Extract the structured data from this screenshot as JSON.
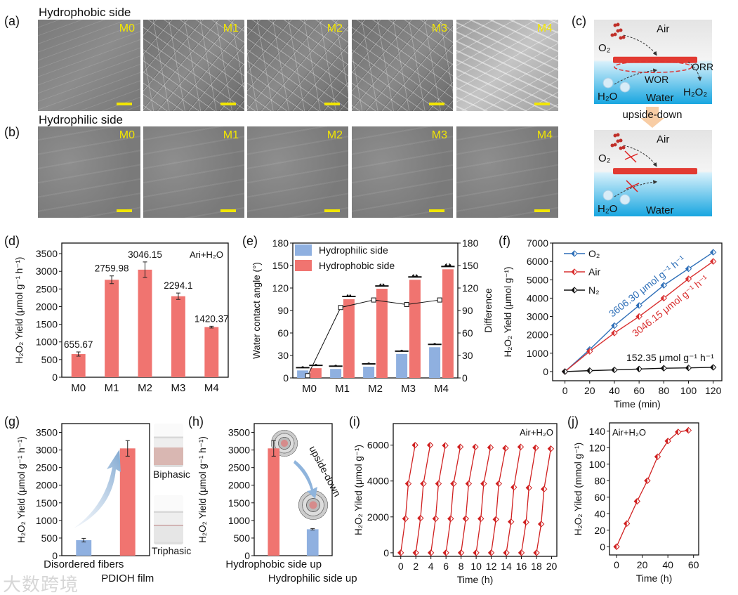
{
  "panels": {
    "a": "(a)",
    "b": "(b)",
    "c": "(c)",
    "d": "(d)",
    "e": "(e)",
    "f": "(f)",
    "g": "(g)",
    "h": "(h)",
    "i": "(i)",
    "j": "(j)"
  },
  "sem": {
    "hydrophobic_title": "Hydrophobic side",
    "hydrophilic_title": "Hydrophilic side",
    "samples": [
      "M0",
      "M1",
      "M2",
      "M3",
      "M4"
    ]
  },
  "schematic": {
    "top": {
      "air": "Air",
      "o2": "O₂",
      "orr": "ORR",
      "wor": "WOR",
      "h2o": "H₂O",
      "water": "Water",
      "h2o2": "H₂O₂"
    },
    "arrow_label": "upside-down",
    "bottom": {
      "air": "Air",
      "o2": "O₂",
      "h2o": "H₂O",
      "water": "Water"
    }
  },
  "photos": {
    "biphasic": "Biphasic",
    "triphasic": "Triphasic",
    "upside_down": "upside-down"
  },
  "watermark": "大数跨境",
  "colors": {
    "red": "#f07470",
    "blue": "#8fb0e0",
    "o2_line": "#2e6fb8",
    "air_line": "#d93030",
    "n2_line": "#111111",
    "cycle_line": "#d02020"
  },
  "chart_data": [
    {
      "id": "d",
      "type": "bar",
      "categories": [
        "M0",
        "M1",
        "M2",
        "M3",
        "M4"
      ],
      "values": [
        655.67,
        2759.98,
        3046.15,
        2294.1,
        1420.37
      ],
      "errors": [
        60,
        110,
        220,
        90,
        25
      ],
      "value_labels": [
        "655.67",
        "2759.98",
        "3046.15",
        "2294.1",
        "1420.37"
      ],
      "ylabel": "H₂O₂ Yield (μmol g⁻¹ h⁻¹)",
      "xlabel": "",
      "ylim": [
        0,
        3800
      ],
      "yticks": [
        0,
        500,
        1000,
        1500,
        2000,
        2500,
        3000,
        3500
      ],
      "annotation": "Ari+H₂O"
    },
    {
      "id": "e",
      "type": "bar",
      "categories": [
        "M0",
        "M1",
        "M2",
        "M3",
        "M4"
      ],
      "series": [
        {
          "name": "Hydrophilic side",
          "values": [
            10,
            12,
            15,
            32,
            41
          ]
        },
        {
          "name": "Hydrophobic side",
          "values": [
            13,
            105,
            119,
            131,
            145
          ]
        }
      ],
      "line_series": {
        "name": "Difference",
        "values": [
          3,
          94,
          104,
          98,
          104
        ]
      },
      "ylabel": "Water contact angle (°)",
      "y2label": "Difference",
      "ylim": [
        0,
        180
      ],
      "yticks": [
        0,
        30,
        60,
        90,
        120,
        150,
        180
      ],
      "y2lim": [
        0,
        180
      ],
      "y2ticks": [
        0,
        30,
        60,
        90,
        120,
        150,
        180
      ],
      "legend": "top-left"
    },
    {
      "id": "f",
      "type": "line",
      "x": [
        0,
        20,
        40,
        60,
        80,
        100,
        120
      ],
      "series": [
        {
          "name": "O₂",
          "values": [
            0,
            1200,
            2500,
            3600,
            4700,
            5600,
            6500
          ]
        },
        {
          "name": "Air",
          "values": [
            0,
            1100,
            2100,
            3000,
            4000,
            5050,
            6000
          ]
        },
        {
          "name": "N₂",
          "values": [
            0,
            50,
            90,
            140,
            180,
            200,
            230
          ]
        }
      ],
      "annotations": [
        "3606.30 μmol g⁻¹ h⁻¹",
        "3046.15 μmol g⁻¹ h⁻¹",
        "152.35 μmol g⁻¹ h⁻¹"
      ],
      "xlabel": "Time (min)",
      "ylabel": "H₂O₂ Yield (μmol g⁻¹)",
      "xlim": [
        -10,
        127
      ],
      "xticks": [
        0,
        20,
        40,
        60,
        80,
        100,
        120
      ],
      "ylim": [
        -500,
        7000
      ],
      "yticks": [
        0,
        1000,
        2000,
        3000,
        4000,
        5000,
        6000,
        7000
      ],
      "legend": "top-left"
    },
    {
      "id": "g",
      "type": "bar",
      "categories": [
        "Disordered fibers",
        "PDIOH film"
      ],
      "values": [
        440,
        3046.15
      ],
      "errors": [
        50,
        220
      ],
      "ylabel": "H₂O₂ Yield (μmol g⁻¹ h⁻¹)",
      "ylim": [
        0,
        3750
      ],
      "yticks": [
        0,
        500,
        1000,
        1500,
        2000,
        2500,
        3000,
        3500
      ]
    },
    {
      "id": "h",
      "type": "bar",
      "categories": [
        "Hydrophobic side up",
        "Hydrophilic side up"
      ],
      "values": [
        3046.15,
        750
      ],
      "errors": [
        220,
        20
      ],
      "ylabel": "H₂O₂ Yield (μmol g⁻¹ h⁻¹)",
      "ylim": [
        0,
        3750
      ],
      "yticks": [
        0,
        500,
        1000,
        1500,
        2000,
        2500,
        3000,
        3500
      ]
    },
    {
      "id": "i",
      "type": "line",
      "cycle_offsets": [
        0,
        0.62,
        1.0,
        1.9
      ],
      "cycle_starts": [
        0,
        2,
        4,
        6,
        8,
        10,
        12,
        14,
        16,
        18
      ],
      "cycles": [
        [
          0,
          1900,
          3850,
          6000
        ],
        [
          0,
          1930,
          3850,
          6000
        ],
        [
          0,
          1900,
          3850,
          5980
        ],
        [
          0,
          1900,
          3850,
          5900
        ],
        [
          0,
          1900,
          3850,
          5900
        ],
        [
          0,
          1900,
          3850,
          5870
        ],
        [
          0,
          1860,
          3850,
          5830
        ],
        [
          0,
          1730,
          3650,
          5900
        ],
        [
          0,
          1700,
          3620,
          5850
        ],
        [
          0,
          1600,
          3550,
          5800
        ]
      ],
      "xlabel": "Time (h)",
      "ylabel": "H₂O₂ Yiled (μmol g⁻¹)",
      "xlim": [
        -1,
        20.7
      ],
      "xticks": [
        0,
        2,
        4,
        6,
        8,
        10,
        12,
        14,
        16,
        18,
        20
      ],
      "ylim": [
        -200,
        7200
      ],
      "yticks": [
        0,
        2000,
        4000,
        6000
      ],
      "annotation": "Air+H₂O"
    },
    {
      "id": "j",
      "type": "line",
      "x": [
        0,
        8,
        16,
        24,
        32,
        40,
        48,
        56
      ],
      "values": [
        0,
        28,
        55,
        80,
        109,
        128,
        139,
        141
      ],
      "xlabel": "Time (h)",
      "ylabel": "H₂O₂ Yiled (mmol g⁻¹)",
      "xlim": [
        -5.5,
        64
      ],
      "xticks": [
        0,
        20,
        40,
        60
      ],
      "ylim": [
        -10,
        150
      ],
      "yticks": [
        0,
        20,
        40,
        60,
        80,
        100,
        120,
        140
      ],
      "annotation": "Air+H₂O"
    }
  ]
}
